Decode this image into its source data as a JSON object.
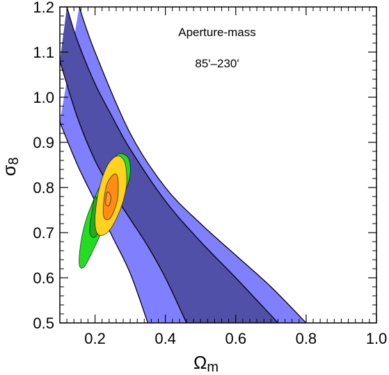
{
  "chart_data": {
    "type": "contour",
    "title": "",
    "annotations": [
      "Aperture-mass",
      "85'–230'"
    ],
    "xlabel": {
      "symbol": "Ω",
      "subscript": "m"
    },
    "ylabel": {
      "symbol": "σ",
      "subscript": "8"
    },
    "xlim": [
      0.1,
      1.0
    ],
    "ylim": [
      0.5,
      1.2
    ],
    "x_ticks": [
      0.2,
      0.4,
      0.6,
      0.8,
      1.0
    ],
    "x_tick_labels": [
      "0.2",
      "0.4",
      "0.6",
      "0.8",
      "1.0"
    ],
    "y_ticks": [
      0.5,
      0.6,
      0.7,
      0.8,
      0.9,
      1.0,
      1.1,
      1.2
    ],
    "y_tick_labels": [
      "0.5",
      "0.6",
      "0.7",
      "0.8",
      "0.9",
      "1.0",
      "1.1",
      "1.2"
    ],
    "bands": [
      {
        "level": "outer",
        "color": "#8080ff",
        "left_edge": [
          [
            0.1,
            0.945
          ],
          [
            0.15,
            0.85
          ],
          [
            0.2,
            0.77
          ],
          [
            0.25,
            0.69
          ],
          [
            0.3,
            0.61
          ],
          [
            0.35,
            0.5
          ]
        ],
        "right_edge": [
          [
            0.155,
            1.2
          ],
          [
            0.2,
            1.1
          ],
          [
            0.3,
            0.92
          ],
          [
            0.4,
            0.8
          ],
          [
            0.5,
            0.72
          ],
          [
            0.6,
            0.65
          ],
          [
            0.7,
            0.58
          ],
          [
            0.8,
            0.5
          ]
        ]
      },
      {
        "level": "inner",
        "color": "#5050a8",
        "left_edge": [
          [
            0.1,
            1.08
          ],
          [
            0.15,
            0.955
          ],
          [
            0.2,
            0.86
          ],
          [
            0.25,
            0.79
          ],
          [
            0.3,
            0.73
          ],
          [
            0.35,
            0.67
          ],
          [
            0.4,
            0.6
          ],
          [
            0.46,
            0.5
          ]
        ],
        "right_edge": [
          [
            0.12,
            1.2
          ],
          [
            0.15,
            1.125
          ],
          [
            0.2,
            1.03
          ],
          [
            0.25,
            0.955
          ],
          [
            0.3,
            0.885
          ],
          [
            0.4,
            0.77
          ],
          [
            0.5,
            0.68
          ],
          [
            0.6,
            0.6
          ],
          [
            0.72,
            0.5
          ]
        ]
      }
    ],
    "regions": [
      {
        "color": "#22dd22",
        "outline": [
          [
            0.27,
            0.875
          ],
          [
            0.295,
            0.865
          ],
          [
            0.3,
            0.83
          ],
          [
            0.285,
            0.79
          ],
          [
            0.26,
            0.76
          ],
          [
            0.23,
            0.72
          ],
          [
            0.2,
            0.67
          ],
          [
            0.17,
            0.625
          ],
          [
            0.155,
            0.63
          ],
          [
            0.16,
            0.68
          ],
          [
            0.175,
            0.73
          ],
          [
            0.2,
            0.78
          ],
          [
            0.225,
            0.82
          ],
          [
            0.25,
            0.86
          ]
        ]
      },
      {
        "color": "#22aa22",
        "outline": [
          [
            0.2,
            0.78
          ],
          [
            0.19,
            0.74
          ],
          [
            0.185,
            0.7
          ],
          [
            0.2,
            0.69
          ],
          [
            0.215,
            0.72
          ],
          [
            0.21,
            0.76
          ]
        ]
      },
      {
        "color": "#ffd21e",
        "outline": [
          [
            0.265,
            0.87
          ],
          [
            0.285,
            0.855
          ],
          [
            0.29,
            0.81
          ],
          [
            0.28,
            0.77
          ],
          [
            0.26,
            0.73
          ],
          [
            0.235,
            0.7
          ],
          [
            0.21,
            0.695
          ],
          [
            0.2,
            0.72
          ],
          [
            0.205,
            0.77
          ],
          [
            0.22,
            0.82
          ],
          [
            0.24,
            0.855
          ]
        ]
      },
      {
        "color": "#ff8c14",
        "outline": [
          [
            0.255,
            0.83
          ],
          [
            0.265,
            0.82
          ],
          [
            0.265,
            0.78
          ],
          [
            0.255,
            0.75
          ],
          [
            0.24,
            0.73
          ],
          [
            0.225,
            0.735
          ],
          [
            0.225,
            0.77
          ],
          [
            0.235,
            0.81
          ]
        ]
      },
      {
        "color": "#ff9a2a",
        "outline": [
          [
            0.235,
            0.79
          ],
          [
            0.245,
            0.78
          ],
          [
            0.24,
            0.76
          ],
          [
            0.23,
            0.765
          ]
        ]
      }
    ]
  }
}
